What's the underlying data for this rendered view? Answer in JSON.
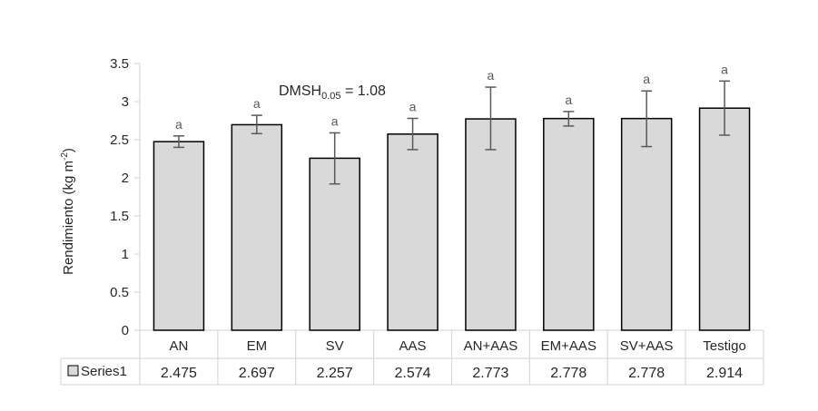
{
  "chart_data": {
    "type": "bar",
    "categories": [
      "AN",
      "EM",
      "SV",
      "AAS",
      "AN+AAS",
      "EM+AAS",
      "SV+AAS",
      "Testigo"
    ],
    "series": [
      {
        "name": "Series1",
        "values": [
          2.475,
          2.697,
          2.257,
          2.574,
          2.773,
          2.778,
          2.778,
          2.914
        ],
        "value_labels": [
          "2.475",
          "2.697",
          "2.257",
          "2.574",
          "2.773",
          "2.778",
          "2.778",
          "2.914"
        ],
        "error_low": [
          2.4,
          2.58,
          1.92,
          2.37,
          2.37,
          2.68,
          2.41,
          2.56
        ],
        "error_high": [
          2.55,
          2.82,
          2.59,
          2.78,
          3.19,
          2.87,
          3.14,
          3.27
        ],
        "letters": [
          "a",
          "a",
          "a",
          "a",
          "a",
          "a",
          "a",
          "a"
        ],
        "color": "#d9d9d9",
        "stroke": "#000000"
      }
    ],
    "ylabel_main": "Rendimiento (kg m",
    "ylabel_sup": "-2",
    "ylabel_end": ")",
    "ylim": [
      0,
      3.5
    ],
    "yticks": [
      0,
      0.5,
      1,
      1.5,
      2,
      2.5,
      3,
      3.5
    ],
    "ytick_labels": [
      "0",
      "0.5",
      "1",
      "1.5",
      "2",
      "2.5",
      "3",
      "3.5"
    ],
    "annotation": {
      "main": "DMSH",
      "sub": "0.05",
      "rest": " = 1.08"
    },
    "legend": "data-table-bottom",
    "grid": false
  }
}
